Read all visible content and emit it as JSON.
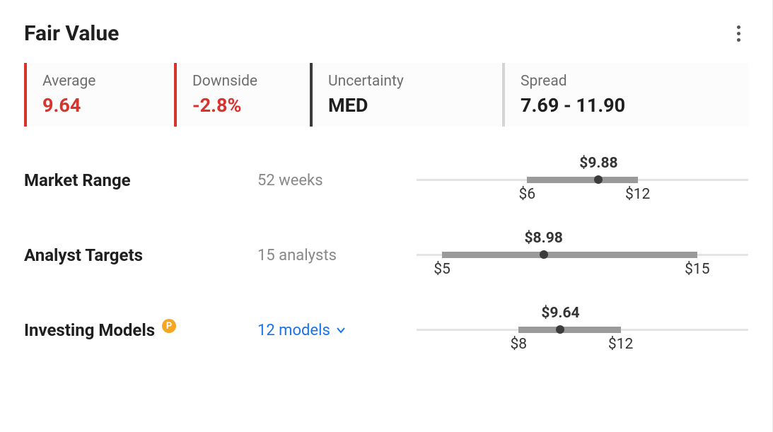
{
  "header": {
    "title": "Fair Value"
  },
  "stats": {
    "average": {
      "label": "Average",
      "value": "9.64",
      "color": "#d7342e",
      "accent": "#d7342e"
    },
    "downside": {
      "label": "Downside",
      "value": "-2.8%",
      "color": "#d7342e",
      "accent": "#d7342e"
    },
    "uncertainty": {
      "label": "Uncertainty",
      "value": "MED",
      "color": "#1f1f1f",
      "accent": "#3c3c3c"
    },
    "spread": {
      "label": "Spread",
      "value": "7.69 - 11.90",
      "color": "#1f1f1f",
      "accent": "#d5d5d5"
    }
  },
  "rows": {
    "market_range": {
      "title": "Market Range",
      "sub": "52 weeks",
      "slider": {
        "axis_min": 0,
        "axis_max": 18,
        "range_low": 6,
        "range_high": 12,
        "current": 9.88,
        "current_label": "$9.88",
        "low_label": "$6",
        "high_label": "$12",
        "track_color": "#e4e4e4",
        "range_color": "#9a9a9a",
        "dot_color": "#3c3c3c"
      }
    },
    "analyst_targets": {
      "title": "Analyst Targets",
      "sub": "15 analysts",
      "slider": {
        "axis_min": 4,
        "axis_max": 17,
        "range_low": 5,
        "range_high": 15,
        "current": 8.98,
        "current_label": "$8.98",
        "low_label": "$5",
        "high_label": "$15",
        "track_color": "#e4e4e4",
        "range_color": "#9a9a9a",
        "dot_color": "#3c3c3c"
      }
    },
    "investing_models": {
      "title": "Investing Models",
      "sub": "12 models",
      "sub_is_link": true,
      "badge": "P",
      "slider": {
        "axis_min": 4,
        "axis_max": 17,
        "range_low": 8,
        "range_high": 12,
        "current": 9.64,
        "current_label": "$9.64",
        "low_label": "$8",
        "high_label": "$12",
        "track_color": "#e4e4e4",
        "range_color": "#9a9a9a",
        "dot_color": "#3c3c3c"
      }
    }
  },
  "colors": {
    "background": "#ffffff",
    "text_primary": "#1f1f1f",
    "text_muted": "#888888",
    "link": "#1a73e8",
    "badge_bg": "#f5a623"
  }
}
